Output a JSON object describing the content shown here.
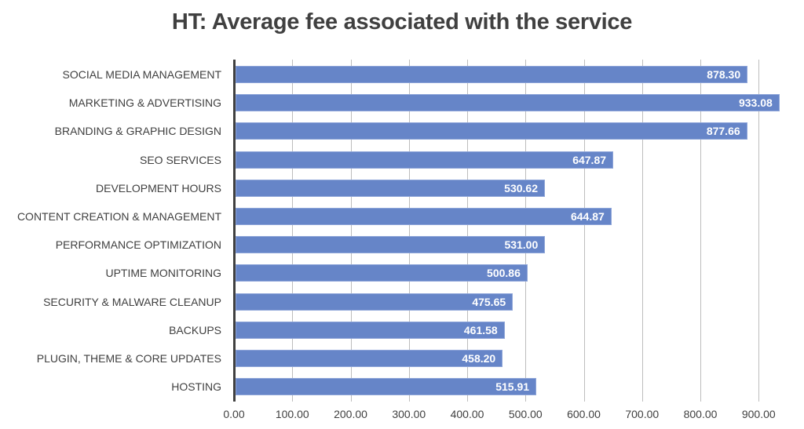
{
  "chart_data": {
    "type": "bar",
    "orientation": "horizontal",
    "title": "HT: Average fee associated with the service",
    "xlabel": "",
    "ylabel": "",
    "xlim": [
      0,
      950
    ],
    "grid": true,
    "bar_color": "#6685c8",
    "categories": [
      "SOCIAL MEDIA MANAGEMENT",
      "MARKETING & ADVERTISING",
      "BRANDING & GRAPHIC DESIGN",
      "SEO SERVICES",
      "DEVELOPMENT HOURS",
      "CONTENT CREATION & MANAGEMENT",
      "PERFORMANCE OPTIMIZATION",
      "UPTIME MONITORING",
      "SECURITY & MALWARE CLEANUP",
      "BACKUPS",
      "PLUGIN, THEME & CORE UPDATES",
      "HOSTING"
    ],
    "values": [
      878.3,
      933.08,
      877.66,
      647.87,
      530.62,
      644.87,
      531.0,
      500.86,
      475.65,
      461.58,
      458.2,
      515.91
    ],
    "value_labels": [
      "878.30",
      "933.08",
      "877.66",
      "647.87",
      "530.62",
      "644.87",
      "531.00",
      "500.86",
      "475.65",
      "461.58",
      "458.20",
      "515.91"
    ],
    "x_ticks": [
      "0.00",
      "100.00",
      "200.00",
      "300.00",
      "400.00",
      "500.00",
      "600.00",
      "700.00",
      "800.00",
      "900.00"
    ]
  }
}
